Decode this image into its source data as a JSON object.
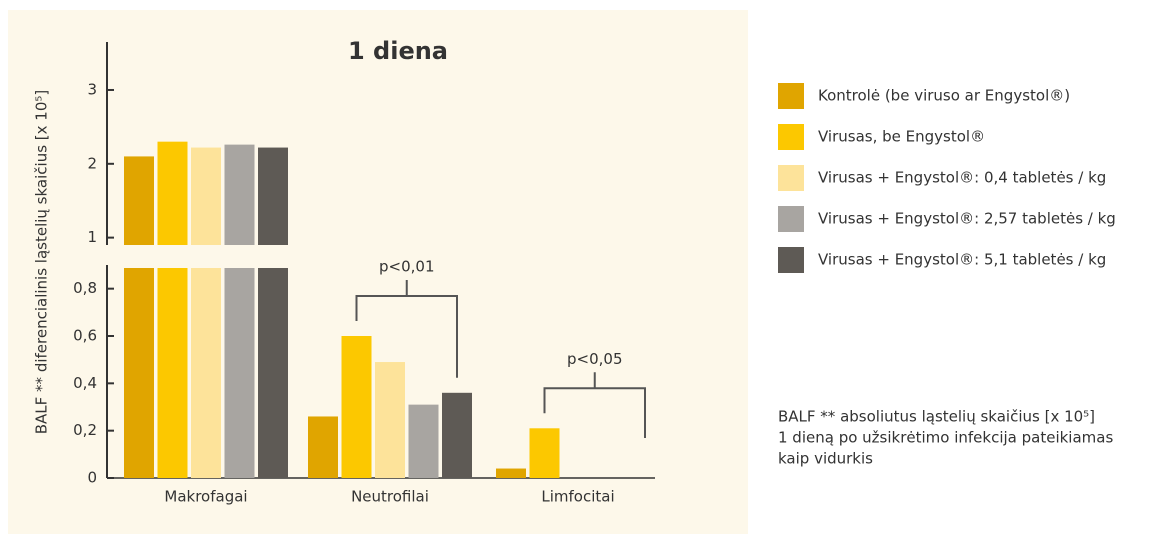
{
  "chart_data": {
    "type": "bar",
    "title": "1 diena",
    "y_label": "BALF ** diferencialinis ląstelių skaičius [x 10⁵]",
    "categories": [
      "Makrofagai",
      "Neutrofilai",
      "Limfocitai"
    ],
    "series": [
      {
        "name": "Kontrolė (be viruso ar Engystol®)",
        "color": "#e0a500",
        "values": [
          2.1,
          0.26,
          0.04
        ]
      },
      {
        "name": "Virusas, be Engystol®",
        "color": "#fcc800",
        "values": [
          2.3,
          0.6,
          0.21
        ]
      },
      {
        "name": "Virusas + Engystol®: 0,4 tabletės / kg",
        "color": "#fde39a",
        "values": [
          2.22,
          0.49,
          null
        ]
      },
      {
        "name": "Virusas + Engystol®: 2,57 tabletės / kg",
        "color": "#a8a5a1",
        "values": [
          2.26,
          0.31,
          null
        ]
      },
      {
        "name": "Virusas + Engystol®: 5,1 tabletės / kg",
        "color": "#5e5a55",
        "values": [
          2.22,
          0.36,
          null
        ]
      }
    ],
    "ylim": [
      0,
      3.65
    ],
    "ybreak": 0.9,
    "yticks": [
      0,
      {
        "value": 0.2,
        "label": "0,2"
      },
      {
        "value": 0.4,
        "label": "0,4"
      },
      {
        "value": 0.6,
        "label": "0,6"
      },
      {
        "value": 0.8,
        "label": "0,8"
      },
      1,
      2,
      3
    ],
    "annotations": [
      {
        "text": "p<0,01",
        "category": 1,
        "from": 1,
        "to": 4
      },
      {
        "text": "p<0,05",
        "category": 2,
        "from": 1,
        "to": 4
      }
    ],
    "note": [
      "BALF ** absoliutus ląstelių skaičius [x 10⁵]",
      "1 dieną po užsikrėtimo infekcija pateikiamas",
      "kaip vidurkis"
    ]
  }
}
